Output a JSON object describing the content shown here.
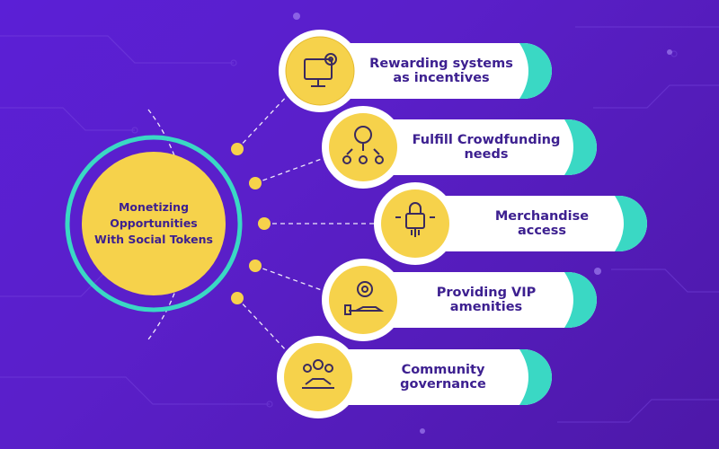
{
  "center": {
    "lines": [
      "Monetizing",
      "Opportunities",
      "With Social Tokens"
    ]
  },
  "items": [
    {
      "lines": [
        "Rewarding systems",
        "as incentives"
      ],
      "icon": "monitor-gear-icon"
    },
    {
      "lines": [
        "Fulfill Crowdfunding",
        "needs"
      ],
      "icon": "crowdfunding-icon"
    },
    {
      "lines": [
        "Merchandise",
        "access"
      ],
      "icon": "lock-hand-icon"
    },
    {
      "lines": [
        "Providing VIP",
        "amenities"
      ],
      "icon": "hand-gear-icon"
    },
    {
      "lines": [
        "Community",
        "governance"
      ],
      "icon": "community-handshake-icon"
    }
  ],
  "colors": {
    "background": "#5a1fc9",
    "accent_yellow": "#f6d24b",
    "accent_teal": "#3ad8c4",
    "text_dark": "#3d2090"
  }
}
